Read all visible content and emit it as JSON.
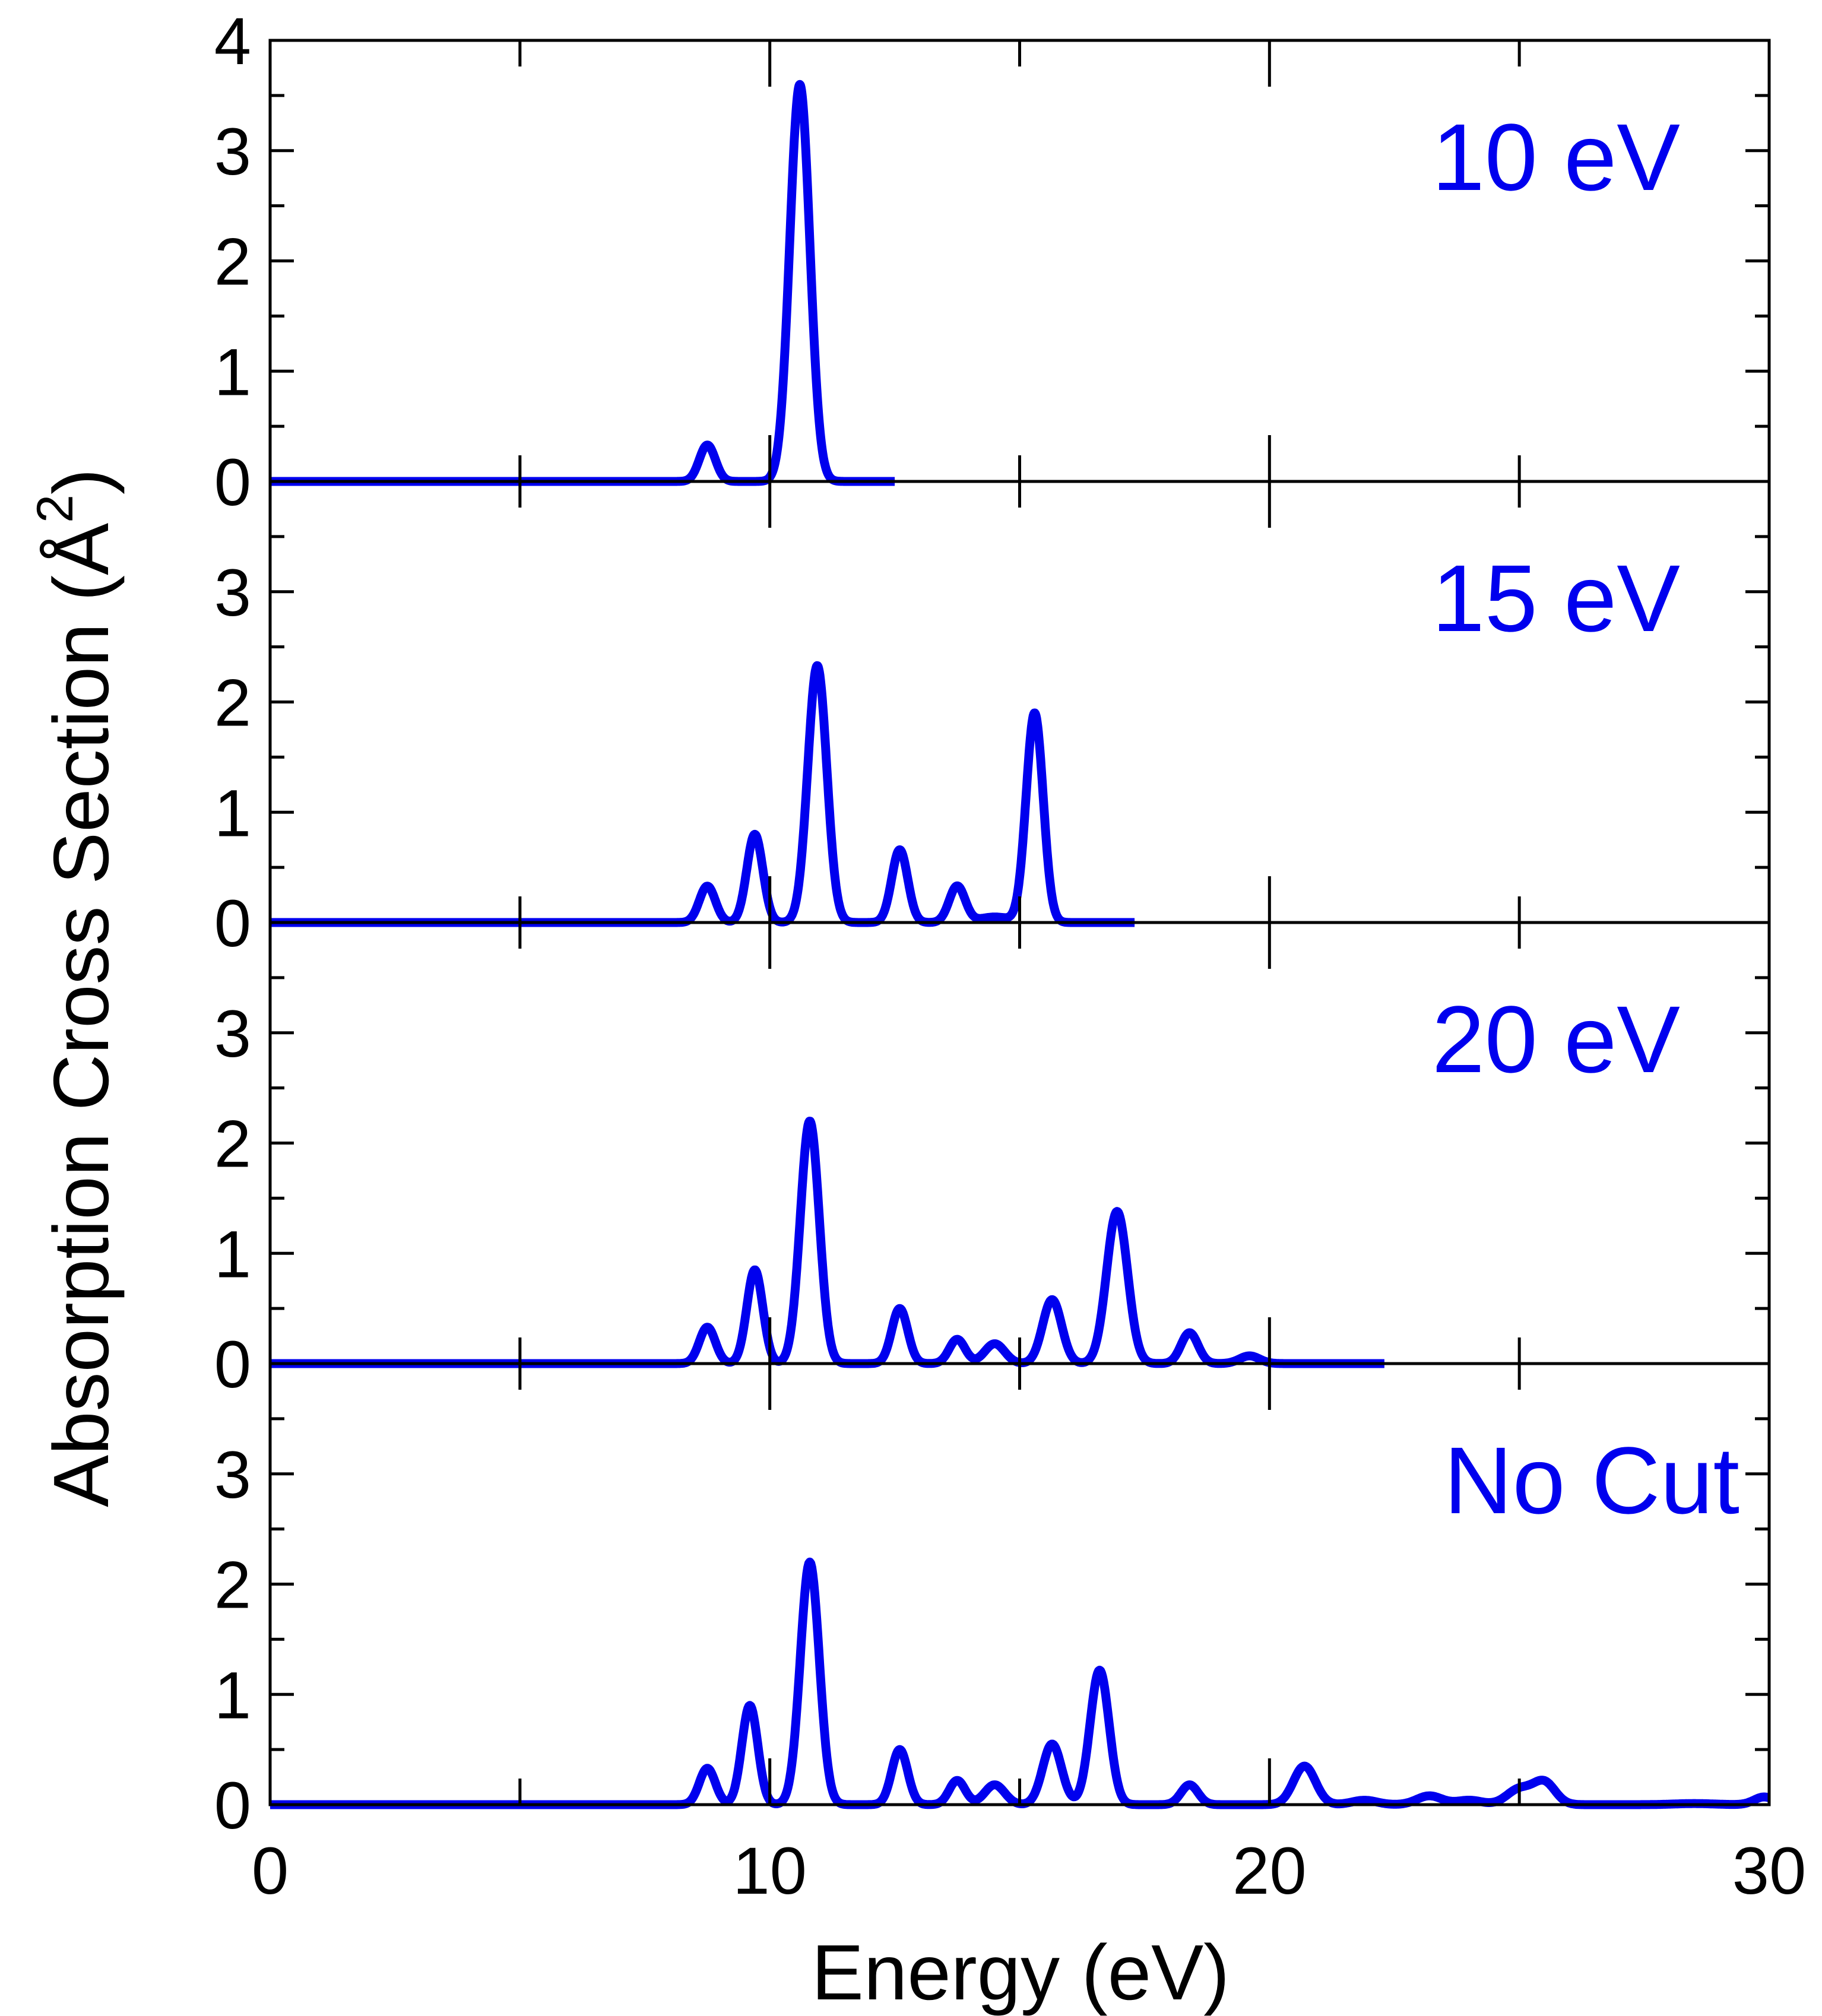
{
  "chart_data": {
    "type": "line",
    "xlabel": "Energy (eV)",
    "ylabel_prefix": "Absorption Cross Section (",
    "ylabel_unit": "Å",
    "ylabel_exponent": "2",
    "ylabel_suffix": ")",
    "xlim": [
      0,
      30
    ],
    "ylim": [
      0,
      4
    ],
    "x_ticks": [
      0,
      10,
      20,
      30
    ],
    "x_minor_step": 5,
    "y_ticks_top_panel": [
      0,
      1,
      2,
      3,
      4
    ],
    "y_ticks_other_panels": [
      0,
      1,
      2,
      3
    ],
    "y_minor_step": 0.5,
    "grid": false,
    "line_color": "#0000ee",
    "panels": [
      {
        "label": "10 eV",
        "x_end": 12.5,
        "peaks": [
          [
            8.75,
            0.33,
            0.16
          ],
          [
            10.6,
            3.6,
            0.2
          ]
        ]
      },
      {
        "label": "15 eV",
        "x_end": 17.3,
        "peaks": [
          [
            8.75,
            0.33,
            0.16
          ],
          [
            9.7,
            0.8,
            0.16
          ],
          [
            10.95,
            2.33,
            0.19
          ],
          [
            12.6,
            0.66,
            0.16
          ],
          [
            13.75,
            0.33,
            0.16
          ],
          [
            14.5,
            0.05,
            0.3
          ],
          [
            15.3,
            1.9,
            0.17
          ]
        ]
      },
      {
        "label": "20 eV",
        "x_end": 22.3,
        "peaks": [
          [
            8.75,
            0.33,
            0.16
          ],
          [
            9.7,
            0.85,
            0.16
          ],
          [
            10.8,
            2.2,
            0.19
          ],
          [
            12.6,
            0.5,
            0.16
          ],
          [
            13.75,
            0.22,
            0.16
          ],
          [
            14.5,
            0.18,
            0.2
          ],
          [
            15.65,
            0.58,
            0.19
          ],
          [
            16.95,
            1.38,
            0.21
          ],
          [
            18.4,
            0.28,
            0.17
          ],
          [
            19.6,
            0.07,
            0.2
          ]
        ]
      },
      {
        "label": "No Cut",
        "x_end": 30,
        "peaks": [
          [
            8.75,
            0.33,
            0.16
          ],
          [
            9.6,
            0.9,
            0.16
          ],
          [
            10.8,
            2.2,
            0.19
          ],
          [
            12.6,
            0.5,
            0.16
          ],
          [
            13.75,
            0.22,
            0.16
          ],
          [
            14.5,
            0.18,
            0.2
          ],
          [
            15.65,
            0.55,
            0.19
          ],
          [
            16.6,
            1.22,
            0.19
          ],
          [
            18.4,
            0.18,
            0.17
          ],
          [
            20.7,
            0.35,
            0.22
          ],
          [
            21.9,
            0.04,
            0.25
          ],
          [
            23.2,
            0.08,
            0.25
          ],
          [
            24.0,
            0.04,
            0.25
          ],
          [
            25.0,
            0.14,
            0.25
          ],
          [
            25.5,
            0.2,
            0.22
          ],
          [
            28.5,
            0.01,
            0.4
          ],
          [
            29.9,
            0.07,
            0.2
          ]
        ]
      }
    ]
  }
}
